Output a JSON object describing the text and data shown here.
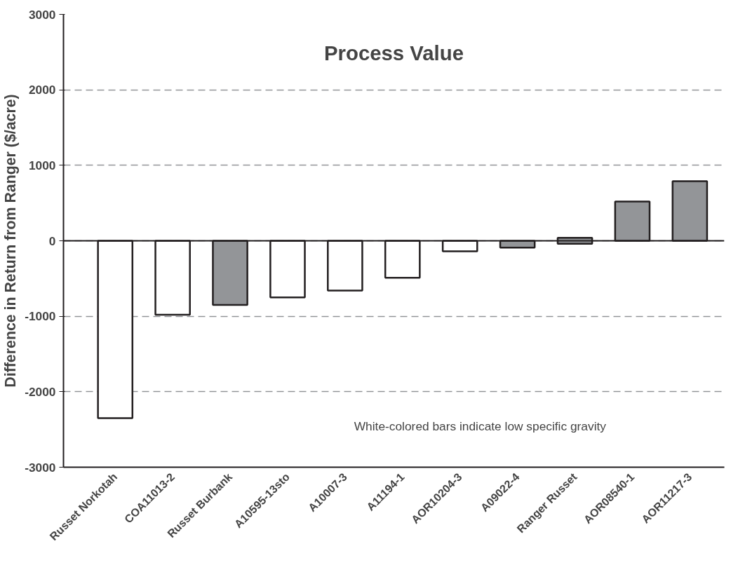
{
  "chart_data": {
    "type": "bar",
    "title": "Process Value",
    "ylabel": "Difference in Return from Ranger ($/acre)",
    "categories": [
      "Russet Norkotah",
      "COA11013-2",
      "Russet Burbank",
      "A10595-13sto",
      "A10007-3",
      "A11194-1",
      "AOR10204-3",
      "A09022-4",
      "Ranger Russet",
      "AOR08540-1",
      "AOR11217-3"
    ],
    "values": [
      -2350,
      -980,
      -850,
      -750,
      -660,
      -490,
      -140,
      -90,
      80,
      520,
      790
    ],
    "base": [
      0,
      0,
      0,
      0,
      0,
      0,
      0,
      0,
      -40,
      0,
      0
    ],
    "colors": [
      "#ffffff",
      "#ffffff",
      "#939598",
      "#ffffff",
      "#ffffff",
      "#ffffff",
      "#ffffff",
      "#939598",
      "#939598",
      "#939598",
      "#939598"
    ],
    "ylim": [
      -3000,
      3000
    ],
    "yticks": [
      -3000,
      -2000,
      -1000,
      0,
      1000,
      2000,
      3000
    ],
    "grid": "y",
    "ref_lines": [
      {
        "axis": "y",
        "value": 0,
        "color": "#231f20",
        "line_style": "solid"
      }
    ],
    "annotations": [
      "White-colored bars indicate low specific gravity"
    ]
  }
}
